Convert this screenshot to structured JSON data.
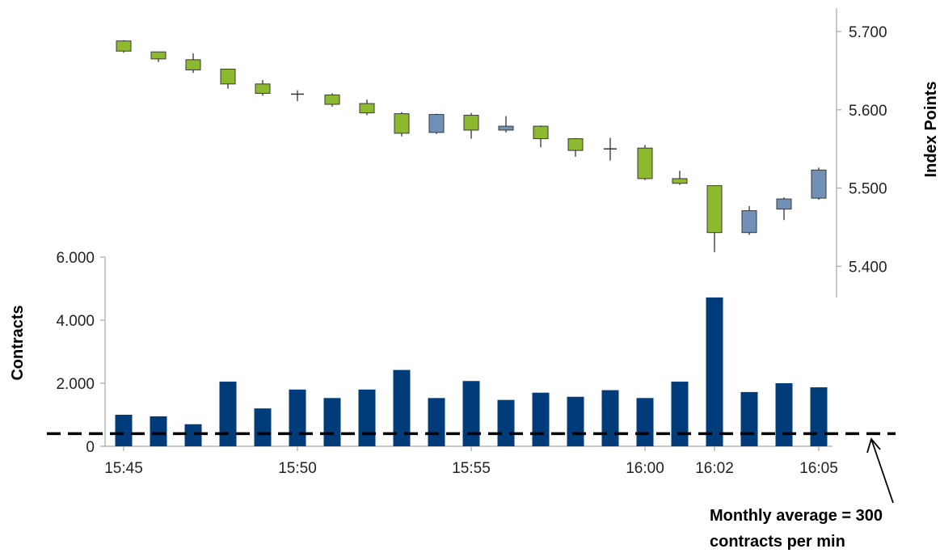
{
  "chart_data": [
    {
      "type": "candlestick",
      "ylabel": "Index Points",
      "ylim": [
        5.36,
        5.73
      ],
      "yticks": [
        5.4,
        5.5,
        5.6,
        5.7
      ],
      "ytick_labels": [
        "5.400",
        "5.500",
        "5.600",
        "5.700"
      ],
      "axis_side": "right",
      "x": [
        "15:45",
        "15:46",
        "15:47",
        "15:48",
        "15:49",
        "15:50",
        "15:51",
        "15:52",
        "15:53",
        "15:54",
        "15:55",
        "15:56",
        "15:57",
        "15:58",
        "15:59",
        "16:00",
        "16:01",
        "16:02",
        "16:03",
        "16:04",
        "16:05"
      ],
      "candles": [
        {
          "o": 5.688,
          "h": 5.689,
          "l": 5.673,
          "c": 5.675,
          "color": "#8DB92E"
        },
        {
          "o": 5.674,
          "h": 5.674,
          "l": 5.661,
          "c": 5.665,
          "color": "#8DB92E"
        },
        {
          "o": 5.664,
          "h": 5.672,
          "l": 5.647,
          "c": 5.651,
          "color": "#8DB92E"
        },
        {
          "o": 5.652,
          "h": 5.652,
          "l": 5.627,
          "c": 5.633,
          "color": "#8DB92E"
        },
        {
          "o": 5.633,
          "h": 5.638,
          "l": 5.618,
          "c": 5.621,
          "color": "#8DB92E"
        },
        {
          "o": 5.62,
          "h": 5.625,
          "l": 5.611,
          "c": 5.62,
          "color": "#8DB92E"
        },
        {
          "o": 5.619,
          "h": 5.621,
          "l": 5.604,
          "c": 5.607,
          "color": "#8DB92E"
        },
        {
          "o": 5.608,
          "h": 5.613,
          "l": 5.593,
          "c": 5.596,
          "color": "#8DB92E"
        },
        {
          "o": 5.595,
          "h": 5.597,
          "l": 5.566,
          "c": 5.57,
          "color": "#8DB92E"
        },
        {
          "o": 5.571,
          "h": 5.595,
          "l": 5.569,
          "c": 5.594,
          "color": "#7090B6"
        },
        {
          "o": 5.593,
          "h": 5.596,
          "l": 5.563,
          "c": 5.574,
          "color": "#8DB92E"
        },
        {
          "o": 5.574,
          "h": 5.592,
          "l": 5.571,
          "c": 5.579,
          "color": "#7090B6"
        },
        {
          "o": 5.579,
          "h": 5.58,
          "l": 5.552,
          "c": 5.563,
          "color": "#8DB92E"
        },
        {
          "o": 5.563,
          "h": 5.564,
          "l": 5.54,
          "c": 5.548,
          "color": "#8DB92E"
        },
        {
          "o": 5.55,
          "h": 5.564,
          "l": 5.535,
          "c": 5.55,
          "color": "#8DB92E"
        },
        {
          "o": 5.551,
          "h": 5.555,
          "l": 5.51,
          "c": 5.512,
          "color": "#8DB92E"
        },
        {
          "o": 5.512,
          "h": 5.522,
          "l": 5.504,
          "c": 5.506,
          "color": "#8DB92E"
        },
        {
          "o": 5.503,
          "h": 5.503,
          "l": 5.418,
          "c": 5.443,
          "color": "#8DB92E"
        },
        {
          "o": 5.443,
          "h": 5.477,
          "l": 5.44,
          "c": 5.471,
          "color": "#7090B6"
        },
        {
          "o": 5.473,
          "h": 5.488,
          "l": 5.459,
          "c": 5.486,
          "color": "#7090B6"
        },
        {
          "o": 5.487,
          "h": 5.526,
          "l": 5.485,
          "c": 5.523,
          "color": "#7090B6"
        }
      ]
    },
    {
      "type": "bar",
      "ylabel": "Contracts",
      "ylim": [
        0,
        6000
      ],
      "yticks": [
        0,
        2000,
        4000,
        6000
      ],
      "ytick_labels": [
        "0",
        "2.000",
        "4.000",
        "6.000"
      ],
      "categories": [
        "15:45",
        "15:46",
        "15:47",
        "15:48",
        "15:49",
        "15:50",
        "15:51",
        "15:52",
        "15:53",
        "15:54",
        "15:55",
        "15:56",
        "15:57",
        "15:58",
        "15:59",
        "16:00",
        "16:01",
        "16:02",
        "16:03",
        "16:04",
        "16:05"
      ],
      "xtick_labels": [
        {
          "index": 0,
          "label": "15:45"
        },
        {
          "index": 5,
          "label": "15:50"
        },
        {
          "index": 10,
          "label": "15:55"
        },
        {
          "index": 15,
          "label": "16:00"
        },
        {
          "index": 17,
          "label": "16:02"
        },
        {
          "index": 20,
          "label": "16:05"
        }
      ],
      "values": [
        1000,
        950,
        700,
        2050,
        1200,
        1800,
        1530,
        1800,
        2420,
        1530,
        2070,
        1470,
        1700,
        1570,
        1780,
        1530,
        2050,
        4720,
        1720,
        2000,
        1870
      ],
      "bar_color": "#003B7A",
      "reference_line": {
        "value": 400,
        "style": "dashed",
        "color": "#000000"
      }
    }
  ],
  "annotation": {
    "line1": "Monthly average = 300",
    "line2": "contracts per min"
  }
}
